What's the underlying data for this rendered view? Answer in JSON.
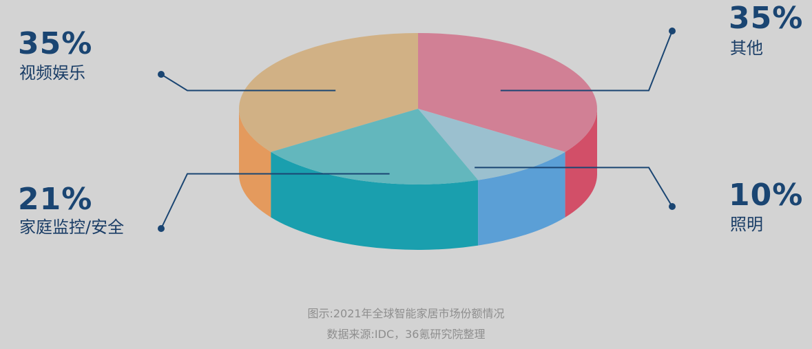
{
  "chart_data": {
    "type": "pie",
    "title": "",
    "categories": [
      "视频娱乐",
      "其他",
      "照明",
      "家庭监控/安全"
    ],
    "values": [
      35,
      35,
      10,
      21
    ],
    "value_labels": [
      "35%",
      "35%",
      "10%",
      "21%"
    ],
    "colors": {
      "top": [
        "#d1b185",
        "#d18095",
        "#9bc0cf",
        "#63b7bd"
      ],
      "side": [
        "#e49a5d",
        "#d24f68",
        "#5b9fd6",
        "#1a9fae"
      ]
    },
    "leader_color": "#1a4572"
  },
  "labels": [
    {
      "pct": "35%",
      "name": "视频娱乐"
    },
    {
      "pct": "35%",
      "name": "其他"
    },
    {
      "pct": "10%",
      "name": "照明"
    },
    {
      "pct": "21%",
      "name": "家庭监控/安全"
    }
  ],
  "caption": {
    "line1": "图示:2021年全球智能家居市场份额情况",
    "line2": "数据来源:IDC，36氪研究院整理"
  }
}
